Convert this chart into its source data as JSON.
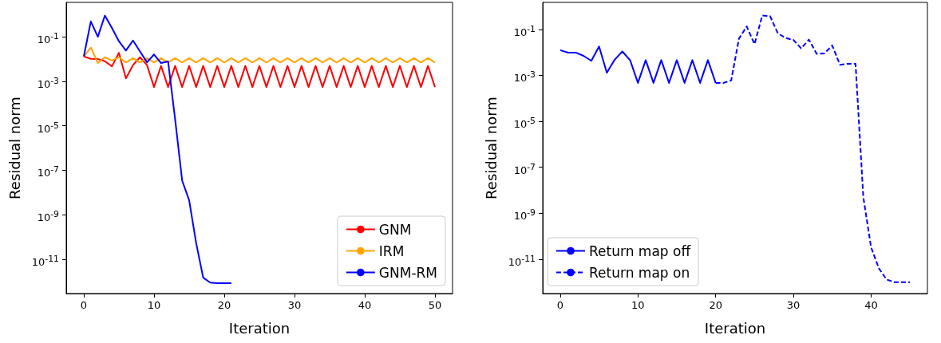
{
  "chart_data": [
    {
      "type": "line",
      "xlabel": "Iteration",
      "ylabel": "Residual norm",
      "log": "y",
      "grid": false,
      "legend": "bottom right",
      "marker": "none",
      "x": [
        0,
        1,
        2,
        3,
        4,
        5,
        6,
        7,
        8,
        9,
        10,
        11,
        12,
        13,
        14,
        15,
        16,
        17,
        18,
        19,
        20,
        21,
        22,
        23,
        24,
        25,
        26,
        27,
        28,
        29,
        30,
        31,
        32,
        33,
        34,
        35,
        36,
        37,
        38,
        39,
        40,
        41,
        42,
        43,
        44,
        45,
        46,
        47,
        48,
        49,
        50
      ],
      "xlim": [
        -2.5,
        52.5
      ],
      "xticks": [
        0,
        10,
        20,
        30,
        40,
        50
      ],
      "ylim": [
        2.9e-13,
        3.5
      ],
      "yticks": [
        {
          "value": 1e-11,
          "label": "10$^{-11}$"
        },
        {
          "value": 1e-09,
          "label": "10$^{-9}$"
        },
        {
          "value": 1e-07,
          "label": "10$^{-7}$"
        },
        {
          "value": 1e-05,
          "label": "10$^{-5}$"
        },
        {
          "value": 0.001,
          "label": "10$^{-3}$"
        },
        {
          "value": 0.1,
          "label": "10$^{-1}$"
        }
      ],
      "series": [
        {
          "name": "GNM",
          "color": "#ff0000",
          "values": [
            0.013,
            0.0102,
            0.01,
            0.008,
            0.0047,
            0.019,
            0.00135,
            0.0053,
            0.012,
            0.0053,
            0.00055,
            0.0049,
            0.00055,
            0.0049,
            0.00055,
            0.0049,
            0.00055,
            0.0049,
            0.00055,
            0.0049,
            0.00055,
            0.0049,
            0.00055,
            0.0049,
            0.00055,
            0.0049,
            0.00055,
            0.0049,
            0.00055,
            0.0049,
            0.00055,
            0.0049,
            0.00055,
            0.0049,
            0.00055,
            0.0049,
            0.00055,
            0.0049,
            0.00055,
            0.0049,
            0.00055,
            0.0049,
            0.00055,
            0.0049,
            0.00055,
            0.0049,
            0.00055,
            0.0049,
            0.00055,
            0.0049,
            0.00055
          ]
        },
        {
          "name": "IRM",
          "color": "#ffa500",
          "values": [
            0.013,
            0.033,
            0.0066,
            0.012,
            0.0085,
            0.012,
            0.007,
            0.011,
            0.007,
            0.011,
            0.007,
            0.011,
            0.007,
            0.011,
            0.007,
            0.011,
            0.007,
            0.011,
            0.007,
            0.011,
            0.007,
            0.011,
            0.007,
            0.011,
            0.007,
            0.011,
            0.007,
            0.011,
            0.007,
            0.011,
            0.007,
            0.011,
            0.007,
            0.011,
            0.007,
            0.011,
            0.007,
            0.011,
            0.007,
            0.011,
            0.007,
            0.011,
            0.007,
            0.011,
            0.007,
            0.011,
            0.007,
            0.011,
            0.007,
            0.011,
            0.007
          ]
        },
        {
          "name": "GNM-RM",
          "color": "#0000ff",
          "values": [
            0.013,
            0.49,
            0.1,
            0.9,
            0.25,
            0.063,
            0.024,
            0.068,
            0.022,
            0.0071,
            0.016,
            0.0066,
            0.0078,
            2e-05,
            3.5e-08,
            4.5e-09,
            5.3e-11,
            1.5e-12,
            9e-13,
            8.5e-13,
            8.5e-13,
            8.5e-13,
            null,
            null,
            null,
            null,
            null,
            null,
            null,
            null,
            null,
            null,
            null,
            null,
            null,
            null,
            null,
            null,
            null,
            null,
            null,
            null,
            null,
            null,
            null,
            null,
            null,
            null,
            null,
            null,
            null
          ]
        }
      ]
    },
    {
      "type": "line",
      "xlabel": "Iteration",
      "ylabel": "Residual norm",
      "log": "y",
      "grid": false,
      "legend": "bottom left",
      "marker": "none",
      "xlim": [
        -2.25,
        47.25
      ],
      "xticks": [
        0,
        10,
        20,
        30,
        40
      ],
      "ylim": [
        3.2e-13,
        1.5
      ],
      "yticks": [
        {
          "value": 1e-11,
          "label": "10$^{-11}$"
        },
        {
          "value": 1e-09,
          "label": "10$^{-9}$"
        },
        {
          "value": 1e-07,
          "label": "10$^{-7}$"
        },
        {
          "value": 1e-05,
          "label": "10$^{-5}$"
        },
        {
          "value": 0.001,
          "label": "10$^{-3}$"
        },
        {
          "value": 0.1,
          "label": "10$^{-1}$"
        }
      ],
      "series": [
        {
          "name": "Return map off",
          "color": "#0000ff",
          "line_style": "solid",
          "x": [
            0,
            1,
            2,
            3,
            4,
            5,
            6,
            7,
            8,
            9,
            10,
            11,
            12,
            13,
            14,
            15,
            16,
            17,
            18,
            19,
            20
          ],
          "values": [
            0.0125,
            0.0098,
            0.0098,
            0.0071,
            0.0043,
            0.018,
            0.0013,
            0.0048,
            0.011,
            0.0045,
            0.00047,
            0.0046,
            0.00047,
            0.0046,
            0.00047,
            0.0046,
            0.00047,
            0.0046,
            0.00047,
            0.0046,
            0.00047
          ]
        },
        {
          "name": "Return map on",
          "color": "#0000ff",
          "line_style": "dashed",
          "x": [
            20,
            21,
            22,
            23,
            24,
            25,
            26,
            27,
            28,
            29,
            30,
            31,
            32,
            33,
            34,
            35,
            36,
            37,
            38,
            39,
            40,
            41,
            42,
            43,
            44,
            45
          ],
          "values": [
            0.00047,
            0.00047,
            0.0006,
            0.04,
            0.135,
            0.023,
            0.4,
            0.38,
            0.068,
            0.042,
            0.035,
            0.015,
            0.036,
            0.0087,
            0.009,
            0.02,
            0.0029,
            0.0032,
            0.0032,
            5e-09,
            3.3e-11,
            4e-12,
            1.3e-12,
            1e-12,
            1e-12,
            1e-12
          ]
        }
      ]
    }
  ]
}
